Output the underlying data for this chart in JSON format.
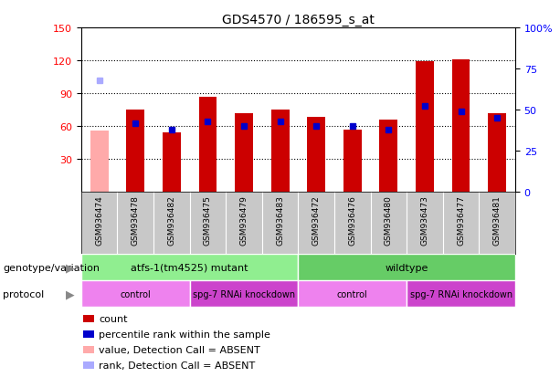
{
  "title": "GDS4570 / 186595_s_at",
  "samples": [
    "GSM936474",
    "GSM936478",
    "GSM936482",
    "GSM936475",
    "GSM936479",
    "GSM936483",
    "GSM936472",
    "GSM936476",
    "GSM936480",
    "GSM936473",
    "GSM936477",
    "GSM936481"
  ],
  "count_values": [
    null,
    75,
    54,
    87,
    72,
    75,
    68,
    57,
    66,
    119,
    121,
    72
  ],
  "count_absent": [
    56,
    null,
    null,
    null,
    null,
    null,
    null,
    null,
    null,
    null,
    null,
    null
  ],
  "rank_values": [
    null,
    42,
    38,
    43,
    40,
    43,
    40,
    40,
    38,
    52,
    49,
    45
  ],
  "rank_absent": [
    68,
    null,
    null,
    null,
    null,
    null,
    null,
    null,
    null,
    null,
    null,
    null
  ],
  "ylim_left": [
    0,
    150
  ],
  "ylim_right": [
    0,
    100
  ],
  "yticks_left": [
    30,
    60,
    90,
    120,
    150
  ],
  "yticks_right": [
    0,
    25,
    50,
    75,
    100
  ],
  "ytick_labels_right": [
    "0",
    "25",
    "50",
    "75",
    "100%"
  ],
  "bar_color": "#cc0000",
  "bar_absent_color": "#ffaaaa",
  "dot_color": "#0000cc",
  "dot_absent_color": "#aaaaff",
  "sample_bg_color": "#c8c8c8",
  "genotype_groups": [
    {
      "label": "atfs-1(tm4525) mutant",
      "start": 0,
      "end": 6,
      "color": "#90ee90"
    },
    {
      "label": "wildtype",
      "start": 6,
      "end": 12,
      "color": "#66cc66"
    }
  ],
  "protocol_groups": [
    {
      "label": "control",
      "start": 0,
      "end": 3,
      "color": "#ee82ee"
    },
    {
      "label": "spg-7 RNAi knockdown",
      "start": 3,
      "end": 6,
      "color": "#cc44cc"
    },
    {
      "label": "control",
      "start": 6,
      "end": 9,
      "color": "#ee82ee"
    },
    {
      "label": "spg-7 RNAi knockdown",
      "start": 9,
      "end": 12,
      "color": "#cc44cc"
    }
  ],
  "legend_items": [
    {
      "label": "count",
      "color": "#cc0000"
    },
    {
      "label": "percentile rank within the sample",
      "color": "#0000cc"
    },
    {
      "label": "value, Detection Call = ABSENT",
      "color": "#ffaaaa"
    },
    {
      "label": "rank, Detection Call = ABSENT",
      "color": "#aaaaff"
    }
  ],
  "genotype_label": "genotype/variation",
  "protocol_label": "protocol"
}
